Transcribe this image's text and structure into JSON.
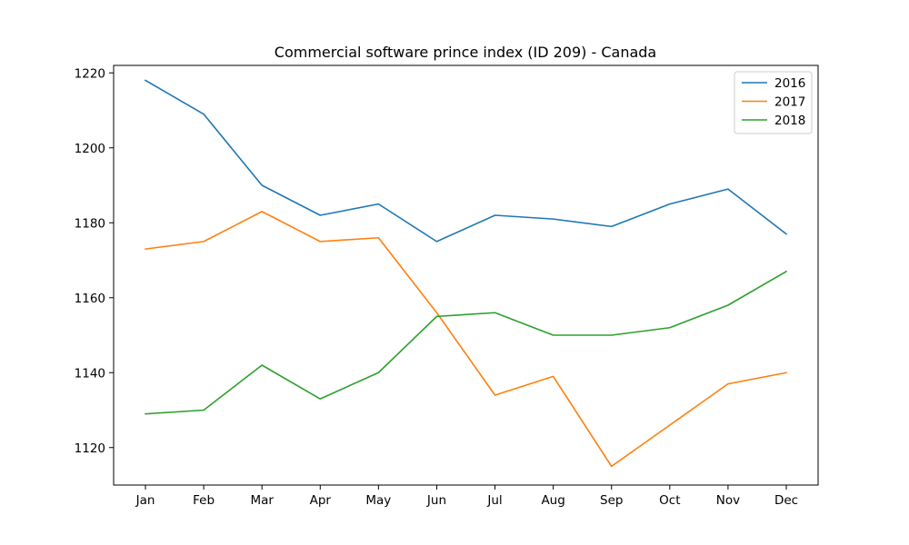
{
  "chart_data": {
    "type": "line",
    "title": "Commercial software prince index (ID 209) - Canada",
    "xlabel": "",
    "ylabel": "",
    "categories": [
      "Jan",
      "Feb",
      "Mar",
      "Apr",
      "May",
      "Jun",
      "Jul",
      "Aug",
      "Sep",
      "Oct",
      "Nov",
      "Dec"
    ],
    "series": [
      {
        "name": "2016",
        "color": "#1f77b4",
        "values": [
          1218,
          1209,
          1190,
          1182,
          1185,
          1175,
          1182,
          1181,
          1179,
          1185,
          1189,
          1177
        ]
      },
      {
        "name": "2017",
        "color": "#ff7f0e",
        "values": [
          1173,
          1175,
          1183,
          1175,
          1176,
          1156,
          1134,
          1139,
          1115,
          1126,
          1137,
          1140
        ]
      },
      {
        "name": "2018",
        "color": "#2ca02c",
        "values": [
          1129,
          1130,
          1142,
          1133,
          1140,
          1155,
          1156,
          1150,
          1150,
          1152,
          1158,
          1167
        ]
      }
    ],
    "ylim": [
      1110,
      1222
    ],
    "yticks": [
      1120,
      1140,
      1160,
      1180,
      1200,
      1220
    ],
    "grid": false,
    "legend_position": "top-right"
  }
}
